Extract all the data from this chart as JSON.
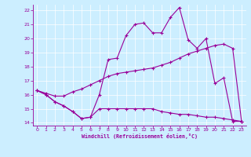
{
  "xlabel": "Windchill (Refroidissement éolien,°C)",
  "xlim": [
    -0.5,
    23.5
  ],
  "ylim": [
    13.8,
    22.4
  ],
  "xticks": [
    0,
    1,
    2,
    3,
    4,
    5,
    6,
    7,
    8,
    9,
    10,
    11,
    12,
    13,
    14,
    15,
    16,
    17,
    18,
    19,
    20,
    21,
    22,
    23
  ],
  "yticks": [
    14,
    15,
    16,
    17,
    18,
    19,
    20,
    21,
    22
  ],
  "bg_color": "#cceeff",
  "line_color": "#990099",
  "curve1_x": [
    0,
    1,
    2,
    3,
    4,
    5,
    6,
    7,
    8,
    9,
    10,
    11,
    12,
    13,
    14,
    15,
    16,
    17,
    18,
    19,
    20,
    21,
    22,
    23
  ],
  "curve1_y": [
    16.3,
    16.0,
    15.5,
    15.2,
    14.8,
    14.3,
    14.4,
    15.0,
    15.0,
    15.0,
    15.0,
    15.0,
    15.0,
    15.0,
    14.8,
    14.7,
    14.6,
    14.6,
    14.5,
    14.4,
    14.4,
    14.3,
    14.2,
    14.1
  ],
  "curve2_x": [
    0,
    1,
    2,
    3,
    4,
    5,
    6,
    7,
    8,
    9,
    10,
    11,
    12,
    13,
    14,
    15,
    16,
    17,
    18,
    19,
    20,
    21,
    22,
    23
  ],
  "curve2_y": [
    16.3,
    16.0,
    15.5,
    15.2,
    14.8,
    14.3,
    14.4,
    16.0,
    18.5,
    18.6,
    20.2,
    21.0,
    21.1,
    20.4,
    20.4,
    21.5,
    22.2,
    19.9,
    19.3,
    20.0,
    16.8,
    17.2,
    14.1,
    14.1
  ],
  "curve3_x": [
    0,
    1,
    2,
    3,
    4,
    5,
    6,
    7,
    8,
    9,
    10,
    11,
    12,
    13,
    14,
    15,
    16,
    17,
    18,
    19,
    20,
    21,
    22,
    23
  ],
  "curve3_y": [
    16.3,
    16.1,
    15.9,
    15.9,
    16.2,
    16.4,
    16.7,
    17.0,
    17.3,
    17.5,
    17.6,
    17.7,
    17.8,
    17.9,
    18.1,
    18.3,
    18.6,
    18.9,
    19.1,
    19.3,
    19.5,
    19.6,
    19.3,
    14.1
  ]
}
